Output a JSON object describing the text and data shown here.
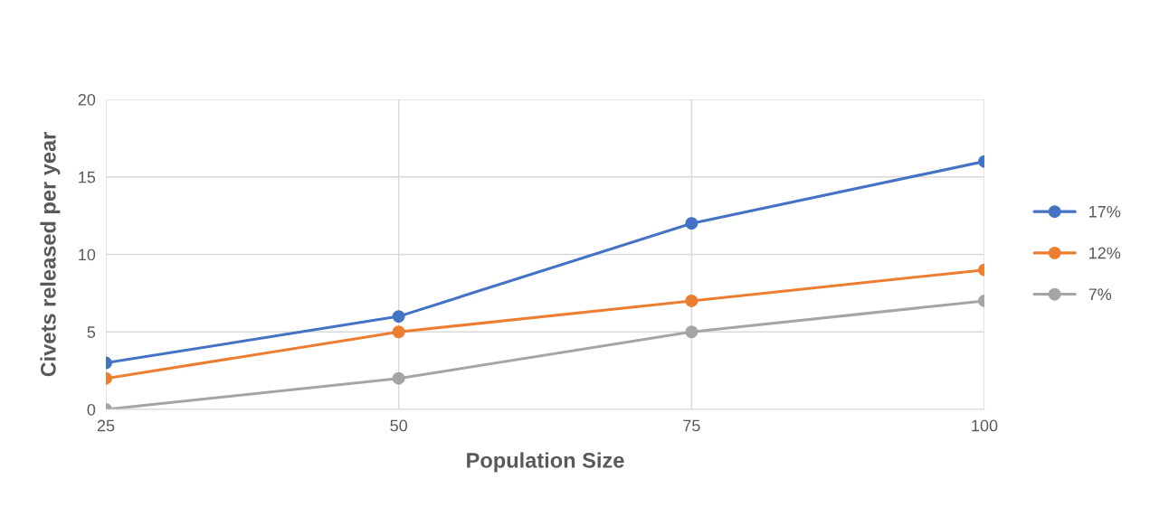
{
  "chart_data": {
    "type": "line",
    "xlabel": "Population Size",
    "ylabel": "Civets released per year",
    "x": [
      25,
      50,
      75,
      100
    ],
    "series": [
      {
        "name": "17%",
        "color": "#4472c4",
        "values": [
          3,
          6,
          12,
          16
        ]
      },
      {
        "name": "12%",
        "color": "#ed7d31",
        "values": [
          2,
          5,
          7,
          9
        ]
      },
      {
        "name": "7%",
        "color": "#a5a5a5",
        "values": [
          0,
          2,
          5,
          7
        ]
      }
    ],
    "xlim": [
      25,
      100
    ],
    "xticks": [
      25,
      50,
      75,
      100
    ],
    "ylim": [
      0,
      20
    ],
    "yticks": [
      0,
      5,
      10,
      15,
      20
    ],
    "grid": true,
    "legend": "right",
    "marker": "circle",
    "line_style": "solid"
  }
}
